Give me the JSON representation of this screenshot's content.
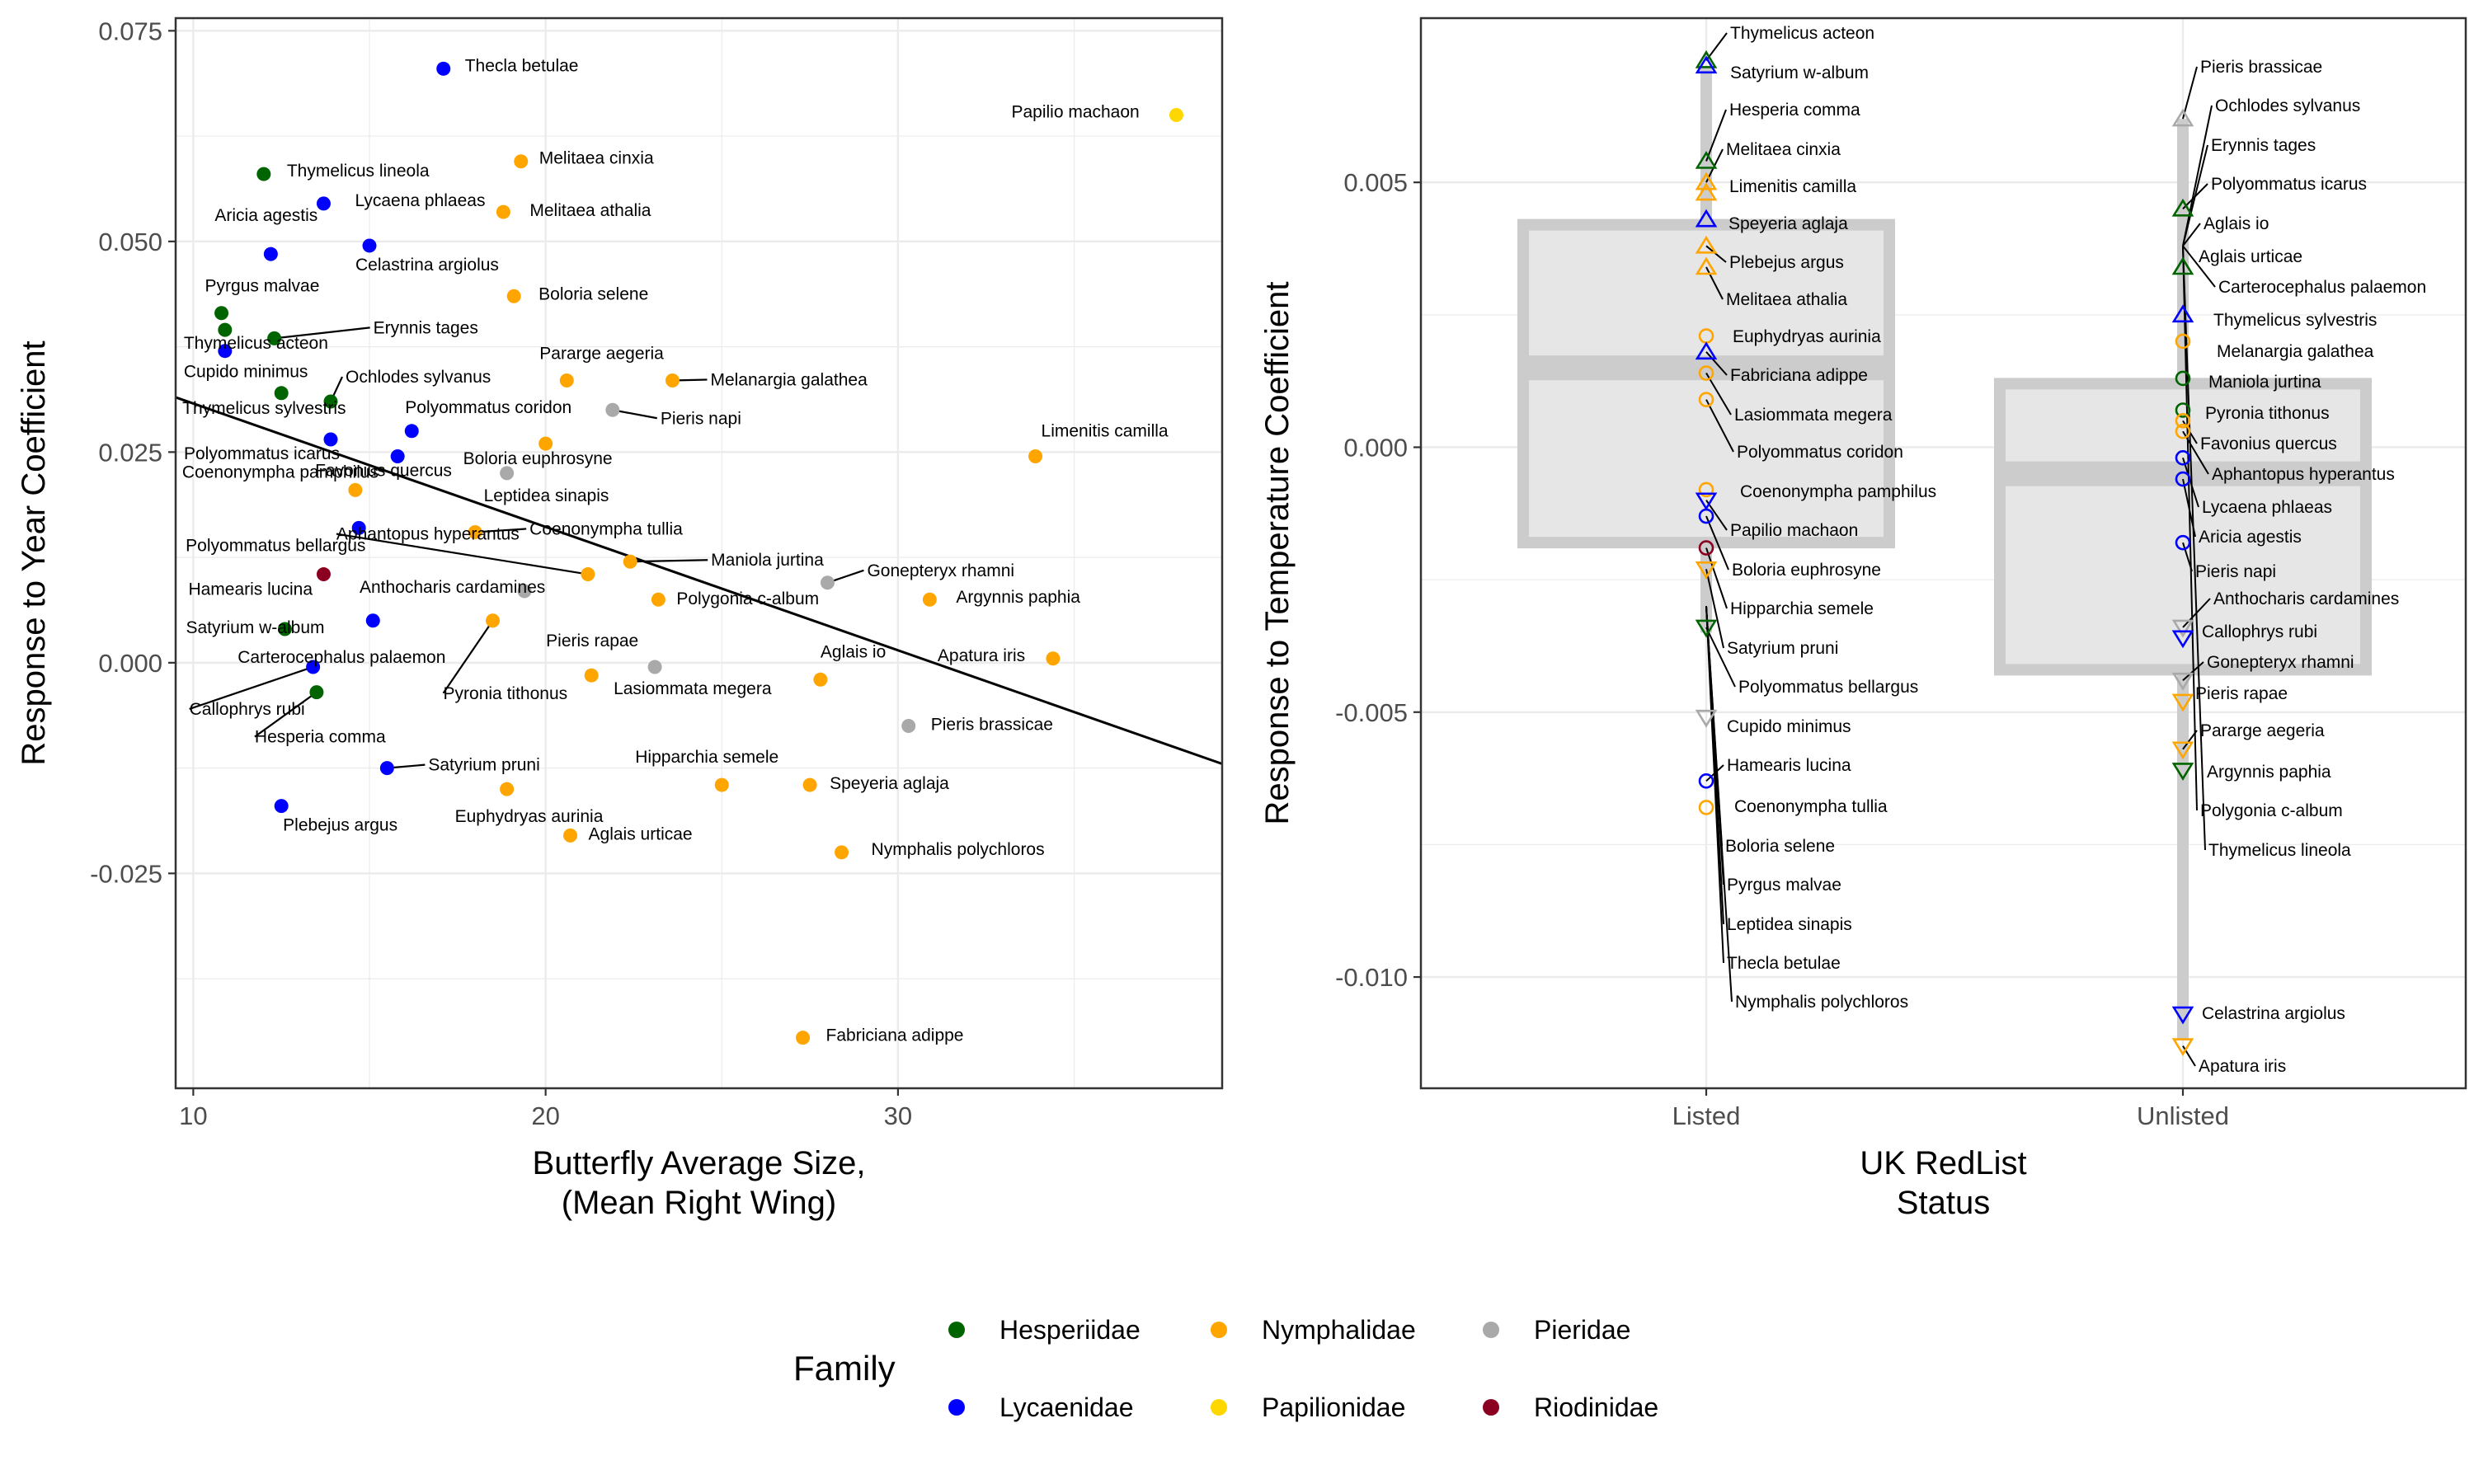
{
  "colors": {
    "families": {
      "Hesperiidae": "#006400",
      "Lycaenidae": "#0000ff",
      "Nymphalidae": "#ffa500",
      "Papilionidae": "#ffd700",
      "Pieridae": "#a9a9a9",
      "Riodinidae": "#8b0020"
    },
    "grid": "#ebebeb",
    "panel_border": "#333333",
    "box_fill": "#e6e6e6",
    "box_stroke": "#cccccc"
  },
  "chart_data": [
    {
      "type": "scatter",
      "xlabel": "Butterfly Average Size,\n(Mean Right Wing)",
      "ylabel": "Response to Year Coefficient",
      "xlim": [
        9.5,
        39.2
      ],
      "ylim": [
        -0.0505,
        0.0765
      ],
      "x_ticks": [
        10,
        20,
        30
      ],
      "y_ticks": [
        -0.025,
        0.0,
        0.025,
        0.05,
        0.075
      ],
      "y_tick_labels": [
        "-0.025",
        "0.000",
        "0.025",
        "0.050",
        "0.075"
      ],
      "trend_line": {
        "x": [
          9.5,
          39.2
        ],
        "y": [
          0.0315,
          -0.012
        ]
      },
      "points": [
        {
          "label": "Thecla betulae",
          "x": 17.1,
          "y": 0.0705,
          "family": "Lycaenidae"
        },
        {
          "label": "Papilio machaon",
          "x": 37.9,
          "y": 0.065,
          "family": "Papilionidae"
        },
        {
          "label": "Thymelicus lineola",
          "x": 12.0,
          "y": 0.058,
          "family": "Hesperiidae"
        },
        {
          "label": "Melitaea cinxia",
          "x": 19.3,
          "y": 0.0595,
          "family": "Nymphalidae"
        },
        {
          "label": "Lycaena phlaeas",
          "x": 13.7,
          "y": 0.0545,
          "family": "Lycaenidae"
        },
        {
          "label": "Melitaea athalia",
          "x": 18.8,
          "y": 0.0535,
          "family": "Nymphalidae"
        },
        {
          "label": "Aricia agestis",
          "x": 12.2,
          "y": 0.0485,
          "family": "Lycaenidae"
        },
        {
          "label": "Celastrina argiolus",
          "x": 15.0,
          "y": 0.0495,
          "family": "Lycaenidae"
        },
        {
          "label": "Boloria selene",
          "x": 19.1,
          "y": 0.0435,
          "family": "Nymphalidae"
        },
        {
          "label": "Pyrgus malvae",
          "x": 10.8,
          "y": 0.0415,
          "family": "Hesperiidae"
        },
        {
          "label": "Thymelicus acteon",
          "x": 10.9,
          "y": 0.0395,
          "family": "Hesperiidae"
        },
        {
          "label": "Erynnis tages",
          "x": 12.3,
          "y": 0.0385,
          "family": "Hesperiidae"
        },
        {
          "label": "Cupido minimus",
          "x": 10.9,
          "y": 0.037,
          "family": "Lycaenidae"
        },
        {
          "label": "Pararge aegeria",
          "x": 20.6,
          "y": 0.0335,
          "family": "Nymphalidae"
        },
        {
          "label": "Melanargia galathea",
          "x": 23.6,
          "y": 0.0335,
          "family": "Nymphalidae"
        },
        {
          "label": "Thymelicus sylvestris",
          "x": 12.5,
          "y": 0.032,
          "family": "Hesperiidae"
        },
        {
          "label": "Ochlodes sylvanus",
          "x": 13.9,
          "y": 0.031,
          "family": "Hesperiidae"
        },
        {
          "label": "Pieris napi",
          "x": 21.9,
          "y": 0.03,
          "family": "Pieridae"
        },
        {
          "label": "Polyommatus coridon",
          "x": 16.2,
          "y": 0.0275,
          "family": "Lycaenidae"
        },
        {
          "label": "Polyommatus icarus",
          "x": 13.9,
          "y": 0.0265,
          "family": "Lycaenidae"
        },
        {
          "label": "Boloria euphrosyne",
          "x": 20.0,
          "y": 0.026,
          "family": "Nymphalidae"
        },
        {
          "label": "Leptidea sinapis",
          "x": 18.9,
          "y": 0.0225,
          "family": "Pieridae"
        },
        {
          "label": "Favonius quercus",
          "x": 15.8,
          "y": 0.0245,
          "family": "Lycaenidae"
        },
        {
          "label": "Coenonympha pamphilus",
          "x": 14.6,
          "y": 0.0205,
          "family": "Nymphalidae"
        },
        {
          "label": "Limenitis camilla",
          "x": 33.9,
          "y": 0.0245,
          "family": "Nymphalidae"
        },
        {
          "label": "Coenonympha tullia",
          "x": 18.0,
          "y": 0.0155,
          "family": "Nymphalidae"
        },
        {
          "label": "Polyommatus bellargus",
          "x": 14.7,
          "y": 0.016,
          "family": "Lycaenidae"
        },
        {
          "label": "Aphantopus hyperantus",
          "x": 21.2,
          "y": 0.0105,
          "family": "Nymphalidae"
        },
        {
          "label": "Maniola jurtina",
          "x": 22.4,
          "y": 0.012,
          "family": "Nymphalidae"
        },
        {
          "label": "Gonepteryx rhamni",
          "x": 28.0,
          "y": 0.0095,
          "family": "Pieridae"
        },
        {
          "label": "Hamearis lucina",
          "x": 13.7,
          "y": 0.0105,
          "family": "Riodinidae"
        },
        {
          "label": "Anthocharis cardamines",
          "x": 19.4,
          "y": 0.0085,
          "family": "Pieridae"
        },
        {
          "label": "Polygonia c-album",
          "x": 23.2,
          "y": 0.0075,
          "family": "Nymphalidae"
        },
        {
          "label": "Argynnis paphia",
          "x": 30.9,
          "y": 0.0075,
          "family": "Nymphalidae"
        },
        {
          "label": "Satyrium w-album",
          "x": 12.6,
          "y": 0.004,
          "family": "Hesperiidae"
        },
        {
          "label": "Pyronia tithonus",
          "x": 18.5,
          "y": 0.005,
          "family": "Nymphalidae"
        },
        {
          "label": "Carterocephalus palaemon",
          "x": 15.1,
          "y": 0.005,
          "family": "Lycaenidae"
        },
        {
          "label": "Callophrys rubi",
          "x": 13.4,
          "y": -0.0005,
          "family": "Lycaenidae"
        },
        {
          "label": "Hesperia comma",
          "x": 13.5,
          "y": -0.0035,
          "family": "Hesperiidae"
        },
        {
          "label": "Pieris rapae",
          "x": 21.3,
          "y": -0.0015,
          "family": "Nymphalidae"
        },
        {
          "label": "Lasiommata megera",
          "x": 23.1,
          "y": -0.0005,
          "family": "Pieridae"
        },
        {
          "label": "Apatura iris",
          "x": 34.4,
          "y": 0.0005,
          "family": "Nymphalidae"
        },
        {
          "label": "Aglais io",
          "x": 27.8,
          "y": -0.002,
          "family": "Nymphalidae"
        },
        {
          "label": "Pieris brassicae",
          "x": 30.3,
          "y": -0.0075,
          "family": "Pieridae"
        },
        {
          "label": "Satyrium pruni",
          "x": 15.5,
          "y": -0.0125,
          "family": "Lycaenidae"
        },
        {
          "label": "Hipparchia semele",
          "x": 25.0,
          "y": -0.0145,
          "family": "Nymphalidae"
        },
        {
          "label": "Speyeria aglaja",
          "x": 27.5,
          "y": -0.0145,
          "family": "Nymphalidae"
        },
        {
          "label": "Euphydryas aurinia",
          "x": 18.9,
          "y": -0.015,
          "family": "Nymphalidae"
        },
        {
          "label": "Plebejus argus",
          "x": 12.5,
          "y": -0.017,
          "family": "Lycaenidae"
        },
        {
          "label": "Aglais urticae",
          "x": 20.7,
          "y": -0.0205,
          "family": "Nymphalidae"
        },
        {
          "label": "Nymphalis polychloros",
          "x": 28.4,
          "y": -0.0225,
          "family": "Nymphalidae"
        },
        {
          "label": "Fabriciana adippe",
          "x": 27.3,
          "y": -0.0445,
          "family": "Nymphalidae"
        }
      ]
    },
    {
      "type": "box",
      "xlabel": "UK RedList\nStatus",
      "ylabel": "Response to Temperature Coefficient",
      "categories": [
        "Listed",
        "Unlisted"
      ],
      "ylim": [
        -0.0121,
        0.0081
      ],
      "y_ticks": [
        -0.01,
        -0.005,
        0.0,
        0.005
      ],
      "y_tick_labels": [
        "-0.010",
        "-0.005",
        "0.000",
        "0.005"
      ],
      "boxes": [
        {
          "category": "Listed",
          "q1": -0.0018,
          "median": 0.0015,
          "q3": 0.0042,
          "whisker_low": -0.0035,
          "whisker_high": 0.0072
        },
        {
          "category": "Unlisted",
          "q1": -0.0042,
          "median": -0.0005,
          "q3": 0.0012,
          "whisker_low": -0.0112,
          "whisker_high": 0.0062
        }
      ],
      "points": [
        {
          "label": "Thymelicus acteon",
          "category": "Listed",
          "y": 0.0073,
          "family": "Hesperiidae",
          "shape": "triangle-up"
        },
        {
          "label": "Satyrium w-album",
          "category": "Listed",
          "y": 0.0072,
          "family": "Lycaenidae",
          "shape": "triangle-up"
        },
        {
          "label": "Hesperia comma",
          "category": "Listed",
          "y": 0.0054,
          "family": "Hesperiidae",
          "shape": "triangle-up"
        },
        {
          "label": "Melitaea cinxia",
          "category": "Listed",
          "y": 0.005,
          "family": "Nymphalidae",
          "shape": "triangle-up"
        },
        {
          "label": "Limenitis camilla",
          "category": "Listed",
          "y": 0.0048,
          "family": "Nymphalidae",
          "shape": "triangle-up"
        },
        {
          "label": "Speyeria aglaja",
          "category": "Listed",
          "y": 0.0043,
          "family": "Lycaenidae",
          "shape": "triangle-up"
        },
        {
          "label": "Plebejus argus",
          "category": "Listed",
          "y": 0.0038,
          "family": "Nymphalidae",
          "shape": "triangle-up"
        },
        {
          "label": "Melitaea athalia",
          "category": "Listed",
          "y": 0.0034,
          "family": "Nymphalidae",
          "shape": "triangle-up"
        },
        {
          "label": "Euphydryas aurinia",
          "category": "Listed",
          "y": 0.0021,
          "family": "Nymphalidae",
          "shape": "circle"
        },
        {
          "label": "Fabriciana adippe",
          "category": "Listed",
          "y": 0.0018,
          "family": "Lycaenidae",
          "shape": "triangle-up"
        },
        {
          "label": "Lasiommata megera",
          "category": "Listed",
          "y": 0.0014,
          "family": "Nymphalidae",
          "shape": "circle"
        },
        {
          "label": "Polyommatus coridon",
          "category": "Listed",
          "y": 0.0009,
          "family": "Nymphalidae",
          "shape": "circle"
        },
        {
          "label": "Coenonympha pamphilus",
          "category": "Listed",
          "y": -0.0008,
          "family": "Nymphalidae",
          "shape": "circle"
        },
        {
          "label": "Papilio machaon",
          "category": "Listed",
          "y": -0.001,
          "family": "Lycaenidae",
          "shape": "triangle-down"
        },
        {
          "label": "Boloria euphrosyne",
          "category": "Listed",
          "y": -0.0013,
          "family": "Lycaenidae",
          "shape": "circle"
        },
        {
          "label": "Hipparchia semele",
          "category": "Listed",
          "y": -0.0019,
          "family": "Riodinidae",
          "shape": "circle"
        },
        {
          "label": "Satyrium pruni",
          "category": "Listed",
          "y": -0.0023,
          "family": "Nymphalidae",
          "shape": "triangle-down"
        },
        {
          "label": "Polyommatus bellargus",
          "category": "Listed",
          "y": -0.0034,
          "family": "Hesperiidae",
          "shape": "triangle-down"
        },
        {
          "label": "Cupido minimus",
          "category": "Listed",
          "y": -0.0051,
          "family": "Pieridae",
          "shape": "triangle-down"
        },
        {
          "label": "Hamearis lucina",
          "category": "Listed",
          "y": -0.0063,
          "family": "Lycaenidae",
          "shape": "circle"
        },
        {
          "label": "Coenonympha tullia",
          "category": "Listed",
          "y": -0.0068,
          "family": "Nymphalidae",
          "shape": "circle"
        },
        {
          "label": "Boloria selene",
          "category": "Listed",
          "y": null,
          "family": null,
          "shape": null
        },
        {
          "label": "Pyrgus malvae",
          "category": "Listed",
          "y": null,
          "family": null,
          "shape": null
        },
        {
          "label": "Leptidea sinapis",
          "category": "Listed",
          "y": null,
          "family": null,
          "shape": null
        },
        {
          "label": "Thecla betulae",
          "category": "Listed",
          "y": null,
          "family": null,
          "shape": null
        },
        {
          "label": "Nymphalis polychloros",
          "category": "Listed",
          "y": null,
          "family": null,
          "shape": null
        },
        {
          "label": "Pieris brassicae",
          "category": "Unlisted",
          "y": 0.0062,
          "family": "Pieridae",
          "shape": "triangle-up"
        },
        {
          "label": "Ochlodes sylvanus",
          "category": "Unlisted",
          "y": null,
          "family": null,
          "shape": null
        },
        {
          "label": "Erynnis tages",
          "category": "Unlisted",
          "y": null,
          "family": null,
          "shape": null
        },
        {
          "label": "Polyommatus icarus",
          "category": "Unlisted",
          "y": 0.0045,
          "family": "Hesperiidae",
          "shape": "triangle-up"
        },
        {
          "label": "Aglais io",
          "category": "Unlisted",
          "y": null,
          "family": null,
          "shape": null
        },
        {
          "label": "Aglais urticae",
          "category": "Unlisted",
          "y": 0.0034,
          "family": "Hesperiidae",
          "shape": "triangle-up"
        },
        {
          "label": "Carterocephalus palaemon",
          "category": "Unlisted",
          "y": null,
          "family": null,
          "shape": null
        },
        {
          "label": "Thymelicus sylvestris",
          "category": "Unlisted",
          "y": 0.0025,
          "family": "Lycaenidae",
          "shape": "triangle-up"
        },
        {
          "label": "Melanargia galathea",
          "category": "Unlisted",
          "y": 0.002,
          "family": "Nymphalidae",
          "shape": "circle"
        },
        {
          "label": "Maniola jurtina",
          "category": "Unlisted",
          "y": 0.0013,
          "family": "Hesperiidae",
          "shape": "circle"
        },
        {
          "label": "Pyronia tithonus",
          "category": "Unlisted",
          "y": 0.0007,
          "family": "Hesperiidae",
          "shape": "circle"
        },
        {
          "label": "Favonius quercus",
          "category": "Unlisted",
          "y": 0.0005,
          "family": "Nymphalidae",
          "shape": "circle"
        },
        {
          "label": "Aphantopus hyperantus",
          "category": "Unlisted",
          "y": 0.0003,
          "family": "Nymphalidae",
          "shape": "circle"
        },
        {
          "label": "Lycaena phlaeas",
          "category": "Unlisted",
          "y": -0.0002,
          "family": "Lycaenidae",
          "shape": "circle"
        },
        {
          "label": "Aricia agestis",
          "category": "Unlisted",
          "y": -0.0006,
          "family": "Lycaenidae",
          "shape": "circle"
        },
        {
          "label": "Pieris napi",
          "category": "Unlisted",
          "y": -0.0018,
          "family": "Lycaenidae",
          "shape": "circle"
        },
        {
          "label": "Anthocharis cardamines",
          "category": "Unlisted",
          "y": -0.0034,
          "family": "Pieridae",
          "shape": "triangle-down"
        },
        {
          "label": "Callophrys rubi",
          "category": "Unlisted",
          "y": -0.0036,
          "family": "Lycaenidae",
          "shape": "triangle-down"
        },
        {
          "label": "Gonepteryx rhamni",
          "category": "Unlisted",
          "y": -0.0044,
          "family": "Pieridae",
          "shape": "triangle-down"
        },
        {
          "label": "Pieris rapae",
          "category": "Unlisted",
          "y": -0.0048,
          "family": "Nymphalidae",
          "shape": "triangle-down"
        },
        {
          "label": "Pararge aegeria",
          "category": "Unlisted",
          "y": -0.0057,
          "family": "Nymphalidae",
          "shape": "triangle-down"
        },
        {
          "label": "Argynnis paphia",
          "category": "Unlisted",
          "y": -0.0061,
          "family": "Hesperiidae",
          "shape": "triangle-down"
        },
        {
          "label": "Polygonia c-album",
          "category": "Unlisted",
          "y": null,
          "family": null,
          "shape": null
        },
        {
          "label": "Thymelicus lineola",
          "category": "Unlisted",
          "y": null,
          "family": null,
          "shape": null
        },
        {
          "label": "Celastrina argiolus",
          "category": "Unlisted",
          "y": -0.0107,
          "family": "Lycaenidae",
          "shape": "triangle-down"
        },
        {
          "label": "Apatura iris",
          "category": "Unlisted",
          "y": -0.0113,
          "family": "Nymphalidae",
          "shape": "triangle-down"
        }
      ]
    }
  ],
  "legend": {
    "title": "Family",
    "position": "bottom",
    "entries": [
      "Hesperiidae",
      "Nymphalidae",
      "Pieridae",
      "Lycaenidae",
      "Papilionidae",
      "Riodinidae"
    ]
  }
}
